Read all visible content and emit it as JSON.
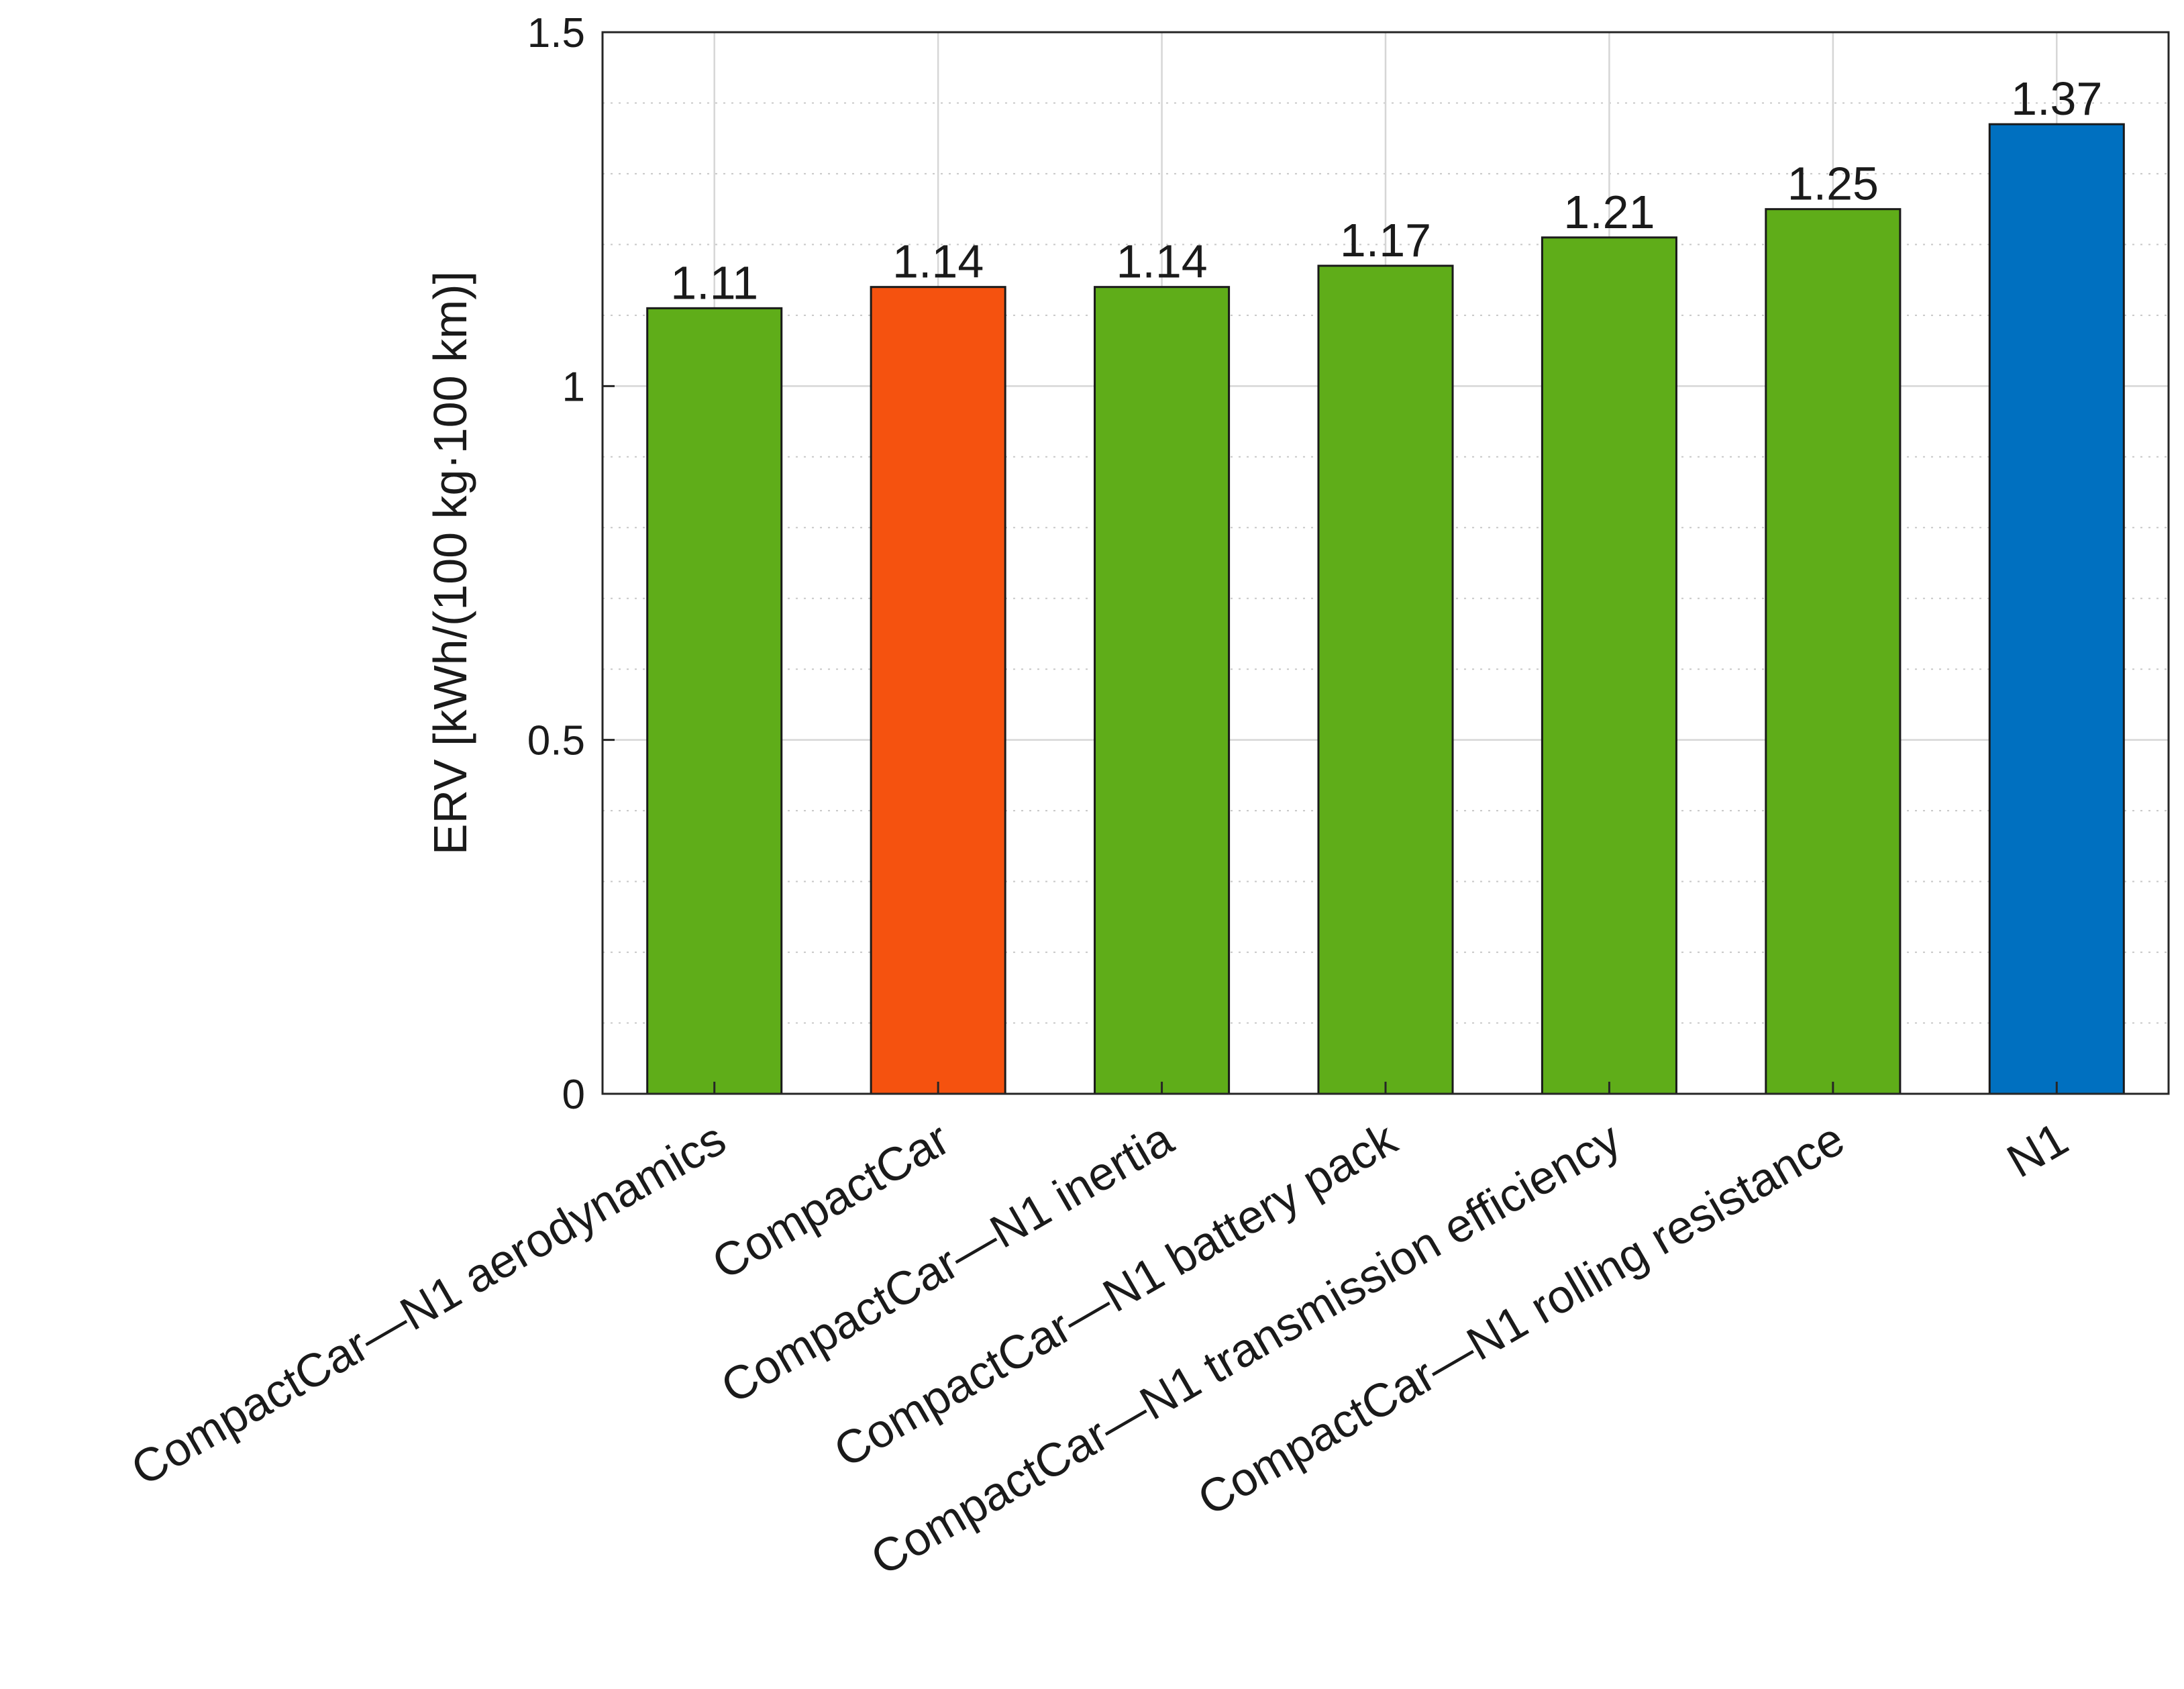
{
  "chart_data": {
    "type": "bar",
    "title": "",
    "xlabel": "",
    "ylabel": "ERV [kWh/(100 kg·100 km)]",
    "ylim": [
      0,
      1.5
    ],
    "yticks": [
      {
        "value": 0,
        "label": "0"
      },
      {
        "value": 0.5,
        "label": "0.5"
      },
      {
        "value": 1,
        "label": "1"
      },
      {
        "value": 1.5,
        "label": "1.5"
      }
    ],
    "minor_step": 0.1,
    "grid": true,
    "categories": [
      "CompactCar—N1 aerodynamics",
      "CompactCar",
      "CompactCar—N1 inertia",
      "CompactCar—N1 battery pack",
      "CompactCar—N1 transmission efficiency",
      "CompactCar—N1 rolling resistance",
      "N1"
    ],
    "values": [
      1.11,
      1.14,
      1.14,
      1.17,
      1.21,
      1.25,
      1.37
    ],
    "value_labels": [
      "1.11",
      "1.14",
      "1.14",
      "1.17",
      "1.21",
      "1.25",
      "1.37"
    ],
    "colors": [
      "#5fad19",
      "#f5520f",
      "#5fad19",
      "#5fad19",
      "#5fad19",
      "#5fad19",
      "#0070c0"
    ]
  }
}
